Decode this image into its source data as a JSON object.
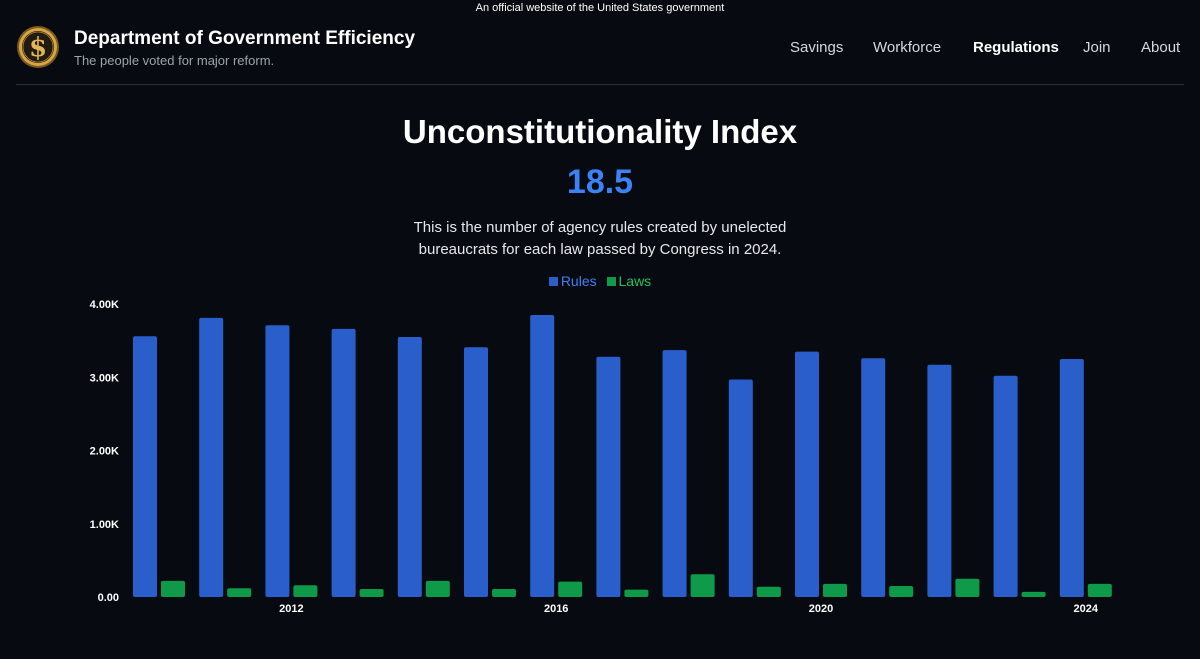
{
  "banner": {
    "text": "An official website of the United States government"
  },
  "brand": {
    "title": "Department of Government Efficiency",
    "subtitle": "The people voted for major reform.",
    "logo_icon": "dollar-seal-icon"
  },
  "nav": {
    "items": [
      {
        "label": "Savings",
        "active": false
      },
      {
        "label": "Workforce",
        "active": false
      },
      {
        "label": "Regulations",
        "active": true
      },
      {
        "label": "Join",
        "active": false
      },
      {
        "label": "About",
        "active": false
      }
    ]
  },
  "hero": {
    "title": "Unconstitutionality Index",
    "value": "18.5",
    "description": "This is the number of agency rules created by unelected bureaucrats for each law passed by Congress in 2024."
  },
  "colors": {
    "rules": "#2a5fcb",
    "laws": "#0f9a49",
    "accent": "#3b82f6",
    "legend_rules_text": "#3b82f6",
    "legend_laws_text": "#22c55e"
  },
  "chart_data": {
    "type": "bar",
    "title": "",
    "categories": [
      "2010",
      "2011",
      "2012",
      "2013",
      "2014",
      "2015",
      "2016",
      "2017",
      "2018",
      "2019",
      "2020",
      "2021",
      "2022",
      "2023",
      "2024"
    ],
    "series": [
      {
        "name": "Rules",
        "values": [
          3560,
          3810,
          3710,
          3660,
          3550,
          3410,
          3850,
          3280,
          3370,
          2970,
          3350,
          3260,
          3170,
          3020,
          3250
        ]
      },
      {
        "name": "Laws",
        "values": [
          220,
          120,
          160,
          110,
          220,
          110,
          210,
          100,
          310,
          140,
          180,
          150,
          250,
          70,
          180
        ]
      }
    ],
    "legend": [
      "Rules",
      "Laws"
    ],
    "legend_position": "top-center",
    "xlabel": "",
    "ylabel": "",
    "ylim": [
      0,
      4000
    ],
    "y_ticks": [
      {
        "value": 0,
        "label": "0.00"
      },
      {
        "value": 1000,
        "label": "1.00K"
      },
      {
        "value": 2000,
        "label": "2.00K"
      },
      {
        "value": 3000,
        "label": "3.00K"
      },
      {
        "value": 4000,
        "label": "4.00K"
      }
    ],
    "x_tick_labels": [
      {
        "category": "2012",
        "label": "2012"
      },
      {
        "category": "2016",
        "label": "2016"
      },
      {
        "category": "2020",
        "label": "2020"
      },
      {
        "category": "2024",
        "label": "2024"
      }
    ],
    "grid": false
  }
}
